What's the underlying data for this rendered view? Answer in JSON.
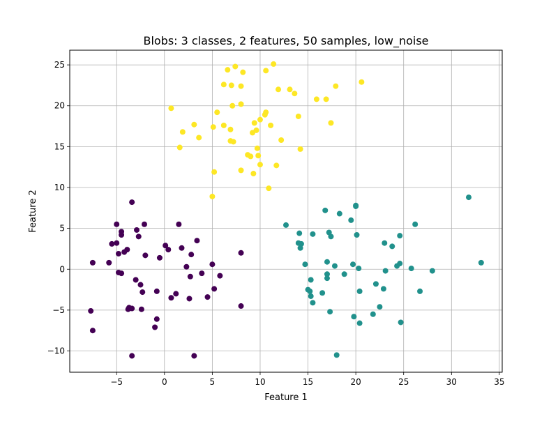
{
  "chart_data": {
    "type": "scatter",
    "title": "Blobs: 3 classes, 2 features, 50 samples, low_noise",
    "xlabel": "Feature 1",
    "ylabel": "Feature 2",
    "xlim": [
      -9.9,
      35.3
    ],
    "ylim": [
      -12.6,
      26.8
    ],
    "xticks": [
      -5,
      0,
      5,
      10,
      15,
      20,
      25,
      30,
      35
    ],
    "yticks": [
      -10,
      -5,
      0,
      5,
      10,
      15,
      20,
      25
    ],
    "xtick_labels": [
      "−5",
      "0",
      "5",
      "10",
      "15",
      "20",
      "25",
      "30",
      "35"
    ],
    "ytick_labels": [
      "−10",
      "−5",
      "0",
      "5",
      "10",
      "15",
      "20",
      "25"
    ],
    "grid": true,
    "series": [
      {
        "color": "#440154",
        "points": [
          [
            -7.5,
            0.8
          ],
          [
            -7.7,
            -5.1
          ],
          [
            -7.5,
            -7.5
          ],
          [
            -5.8,
            0.8
          ],
          [
            -5.5,
            3.1
          ],
          [
            -5.0,
            5.5
          ],
          [
            -5.0,
            3.2
          ],
          [
            -4.8,
            1.9
          ],
          [
            -4.8,
            -0.4
          ],
          [
            -4.5,
            4.6
          ],
          [
            -4.5,
            4.2
          ],
          [
            -4.5,
            -0.5
          ],
          [
            -4.2,
            2.1
          ],
          [
            -3.9,
            2.4
          ],
          [
            -3.8,
            -4.9
          ],
          [
            -3.7,
            -4.7
          ],
          [
            -3.4,
            -4.8
          ],
          [
            -3.4,
            8.2
          ],
          [
            -3.4,
            -10.6
          ],
          [
            -3.0,
            -1.3
          ],
          [
            -2.9,
            4.8
          ],
          [
            -2.7,
            4.0
          ],
          [
            -2.5,
            -1.9
          ],
          [
            -2.4,
            -4.9
          ],
          [
            -2.3,
            -2.8
          ],
          [
            -2.1,
            5.5
          ],
          [
            -2.0,
            1.7
          ],
          [
            -1.0,
            -7.1
          ],
          [
            -0.8,
            -6.1
          ],
          [
            -0.8,
            -2.7
          ],
          [
            -0.5,
            1.4
          ],
          [
            0.1,
            2.9
          ],
          [
            0.4,
            2.4
          ],
          [
            0.7,
            -3.5
          ],
          [
            1.2,
            -3.0
          ],
          [
            1.5,
            5.5
          ],
          [
            1.8,
            2.6
          ],
          [
            2.3,
            0.3
          ],
          [
            2.6,
            -3.6
          ],
          [
            2.7,
            -0.9
          ],
          [
            2.8,
            1.8
          ],
          [
            3.1,
            -10.6
          ],
          [
            3.4,
            3.5
          ],
          [
            3.9,
            -0.5
          ],
          [
            4.5,
            -3.4
          ],
          [
            5.0,
            0.6
          ],
          [
            5.2,
            -2.4
          ],
          [
            5.8,
            -0.8
          ],
          [
            8.0,
            -4.5
          ],
          [
            8.0,
            2.0
          ]
        ]
      },
      {
        "color": "#21918c",
        "points": [
          [
            12.7,
            5.4
          ],
          [
            14.0,
            3.2
          ],
          [
            14.1,
            4.4
          ],
          [
            14.2,
            2.6
          ],
          [
            14.3,
            3.1
          ],
          [
            14.7,
            0.6
          ],
          [
            15.0,
            -2.5
          ],
          [
            15.2,
            -2.7
          ],
          [
            15.3,
            -3.3
          ],
          [
            15.3,
            -1.3
          ],
          [
            15.5,
            -4.1
          ],
          [
            15.5,
            4.3
          ],
          [
            16.5,
            -2.9
          ],
          [
            16.8,
            7.2
          ],
          [
            17.0,
            -1.1
          ],
          [
            17.0,
            -0.6
          ],
          [
            17.0,
            0.9
          ],
          [
            17.2,
            4.5
          ],
          [
            17.3,
            -5.2
          ],
          [
            17.4,
            4.0
          ],
          [
            17.8,
            0.4
          ],
          [
            18.0,
            -10.5
          ],
          [
            18.3,
            6.8
          ],
          [
            18.8,
            -0.6
          ],
          [
            19.5,
            6.0
          ],
          [
            19.7,
            0.6
          ],
          [
            19.8,
            -5.8
          ],
          [
            20.0,
            7.7
          ],
          [
            20.1,
            4.2
          ],
          [
            20.3,
            0.1
          ],
          [
            20.4,
            -6.6
          ],
          [
            20.4,
            -2.7
          ],
          [
            21.8,
            -5.5
          ],
          [
            22.1,
            -1.8
          ],
          [
            22.5,
            -4.6
          ],
          [
            22.9,
            -2.4
          ],
          [
            23.0,
            3.2
          ],
          [
            23.1,
            -0.2
          ],
          [
            23.8,
            2.8
          ],
          [
            24.3,
            0.4
          ],
          [
            24.6,
            4.1
          ],
          [
            24.6,
            0.7
          ],
          [
            24.7,
            -6.5
          ],
          [
            25.8,
            0.1
          ],
          [
            26.2,
            5.5
          ],
          [
            26.7,
            -2.7
          ],
          [
            28.0,
            -0.2
          ],
          [
            31.8,
            8.8
          ],
          [
            33.1,
            0.8
          ],
          [
            20.0,
            7.8
          ]
        ]
      },
      {
        "color": "#fde725",
        "points": [
          [
            0.7,
            19.7
          ],
          [
            1.6,
            14.9
          ],
          [
            1.9,
            16.8
          ],
          [
            3.1,
            17.7
          ],
          [
            3.6,
            16.1
          ],
          [
            5.0,
            8.9
          ],
          [
            5.1,
            17.4
          ],
          [
            5.2,
            11.9
          ],
          [
            5.5,
            19.2
          ],
          [
            6.2,
            22.6
          ],
          [
            6.2,
            17.6
          ],
          [
            6.6,
            24.4
          ],
          [
            6.9,
            15.7
          ],
          [
            6.9,
            17.1
          ],
          [
            7.0,
            22.5
          ],
          [
            7.1,
            20.0
          ],
          [
            7.2,
            15.6
          ],
          [
            7.4,
            24.8
          ],
          [
            8.0,
            12.1
          ],
          [
            8.0,
            20.2
          ],
          [
            8.0,
            22.4
          ],
          [
            8.2,
            24.1
          ],
          [
            8.7,
            14.0
          ],
          [
            9.0,
            13.8
          ],
          [
            9.2,
            16.7
          ],
          [
            9.3,
            11.7
          ],
          [
            9.4,
            17.9
          ],
          [
            9.6,
            17.0
          ],
          [
            9.7,
            14.8
          ],
          [
            9.8,
            13.9
          ],
          [
            10.0,
            12.8
          ],
          [
            10.0,
            18.3
          ],
          [
            10.5,
            18.9
          ],
          [
            10.6,
            19.2
          ],
          [
            10.6,
            24.3
          ],
          [
            10.9,
            9.9
          ],
          [
            11.1,
            17.6
          ],
          [
            11.4,
            25.1
          ],
          [
            11.7,
            12.7
          ],
          [
            11.9,
            22.0
          ],
          [
            12.2,
            15.8
          ],
          [
            13.1,
            22.0
          ],
          [
            13.6,
            21.5
          ],
          [
            14.0,
            18.7
          ],
          [
            14.2,
            14.7
          ],
          [
            15.9,
            20.8
          ],
          [
            16.9,
            20.8
          ],
          [
            17.4,
            17.9
          ],
          [
            17.9,
            22.4
          ],
          [
            20.6,
            22.9
          ]
        ]
      }
    ]
  }
}
